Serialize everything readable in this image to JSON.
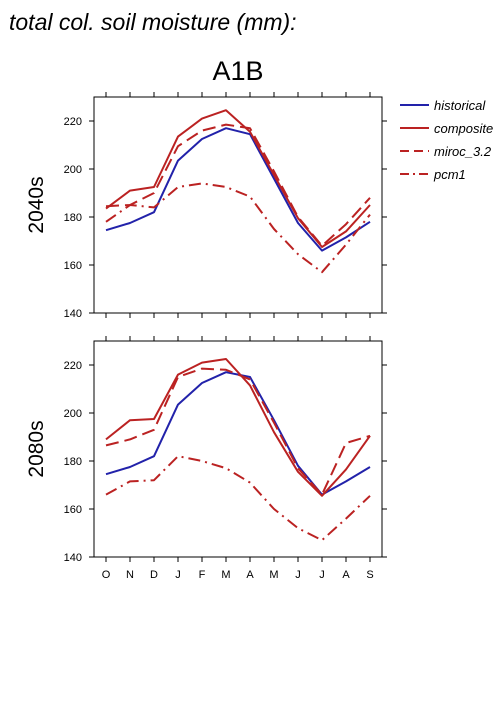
{
  "page_title": "total col. soil moisture (mm):",
  "scenario": "A1B",
  "colors": {
    "historical": "#2222aa",
    "composite": "#bb2222",
    "miroc_3.2": "#bb2222",
    "pcm1": "#bb2222"
  },
  "legend": {
    "placement": "right",
    "entries": [
      {
        "name": "historical",
        "style": "solid",
        "color": "#2222aa"
      },
      {
        "name": "composite",
        "style": "solid",
        "color": "#bb2222"
      },
      {
        "name": "miroc_3.2",
        "style": "dashed",
        "color": "#bb2222"
      },
      {
        "name": "pcm1",
        "style": "dashdot",
        "color": "#bb2222"
      }
    ]
  },
  "chart_data": [
    {
      "type": "line",
      "ylabel": "2040s",
      "categories": [
        "O",
        "N",
        "D",
        "J",
        "F",
        "M",
        "A",
        "M",
        "J",
        "J",
        "A",
        "S"
      ],
      "ylim": [
        140,
        230
      ],
      "yticks": [
        140,
        160,
        180,
        200,
        220
      ],
      "grid": false,
      "series": [
        {
          "name": "historical",
          "style": "solid",
          "values": [
            174.5,
            177.5,
            182,
            203.5,
            212.5,
            217,
            214.5,
            196,
            177.5,
            166,
            171.5,
            178
          ]
        },
        {
          "name": "composite",
          "style": "solid",
          "values": [
            183.5,
            191,
            192.5,
            213.5,
            221,
            224.5,
            215.5,
            197.5,
            179.5,
            167.5,
            174,
            185
          ]
        },
        {
          "name": "miroc_3.2",
          "style": "dashed",
          "values": [
            184.5,
            185,
            190,
            209.5,
            216,
            218.5,
            217,
            199,
            180,
            168,
            177,
            188
          ]
        },
        {
          "name": "pcm1",
          "style": "dashdot",
          "values": [
            178,
            185,
            184,
            192.5,
            194,
            192.5,
            188.5,
            175,
            164.5,
            157,
            168.5,
            181
          ]
        }
      ]
    },
    {
      "type": "line",
      "ylabel": "2080s",
      "categories": [
        "O",
        "N",
        "D",
        "J",
        "F",
        "M",
        "A",
        "M",
        "J",
        "J",
        "A",
        "S"
      ],
      "ylim": [
        140,
        230
      ],
      "yticks": [
        140,
        160,
        180,
        200,
        220
      ],
      "grid": false,
      "series": [
        {
          "name": "historical",
          "style": "solid",
          "values": [
            174.5,
            177.5,
            182,
            203.5,
            212.5,
            217,
            215,
            197,
            178,
            166,
            171.5,
            177.5
          ]
        },
        {
          "name": "composite",
          "style": "solid",
          "values": [
            189,
            197,
            197.5,
            216,
            221,
            222.5,
            211.5,
            192,
            175.5,
            165.5,
            176.5,
            190.5
          ]
        },
        {
          "name": "miroc_3.2",
          "style": "dashed",
          "values": [
            186.5,
            189,
            193,
            215,
            218.5,
            218,
            214,
            196,
            177,
            166,
            187.5,
            190.5
          ]
        },
        {
          "name": "pcm1",
          "style": "dashdot",
          "values": [
            166,
            171.5,
            172,
            182,
            180,
            177,
            171,
            160,
            152,
            147,
            156,
            165.5
          ]
        }
      ]
    }
  ]
}
